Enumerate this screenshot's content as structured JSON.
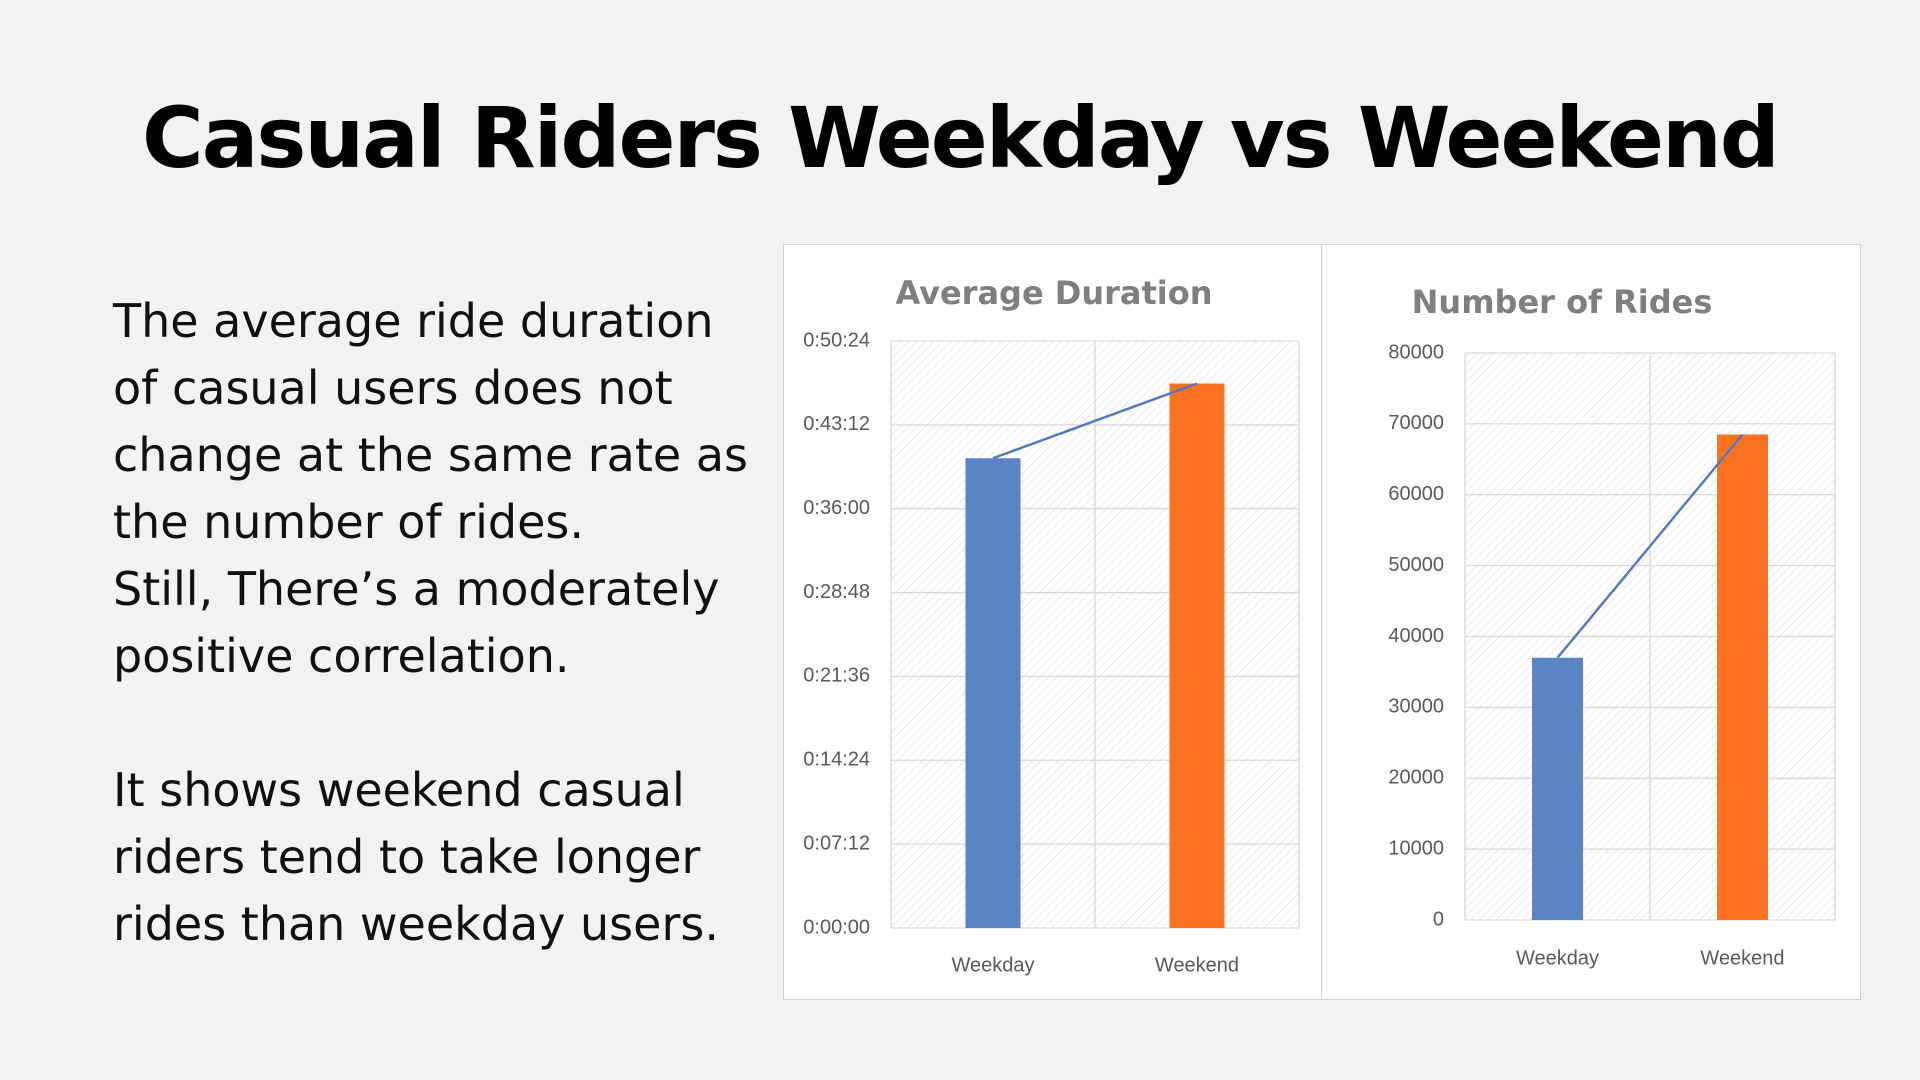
{
  "slide": {
    "title": "Casual Riders Weekday vs Weekend",
    "paragraph1": [
      "The average ride duration",
      "of casual users does not",
      "change at the same rate as",
      "the number of rides.",
      "Still, There’s a moderately",
      "positive correlation."
    ],
    "paragraph2": [
      "It shows weekend casual",
      "riders tend to take longer",
      "rides than weekday users."
    ]
  },
  "colors": {
    "weekday": "#5b84c4",
    "weekend": "#fb7321",
    "trendline": "#4f79c0"
  },
  "chart_data": [
    {
      "type": "bar",
      "title": "Average Duration",
      "categories": [
        "Weekday",
        "Weekend"
      ],
      "values": [
        "0:40:20",
        "0:46:45"
      ],
      "values_seconds": [
        2420,
        2805
      ],
      "ylim": [
        0,
        3024
      ],
      "ytick_labels": [
        "0:00:00",
        "0:07:12",
        "0:14:24",
        "0:21:36",
        "0:28:48",
        "0:36:00",
        "0:43:12",
        "0:50:24"
      ],
      "ytick_values": [
        0,
        432,
        864,
        1296,
        1728,
        2160,
        2592,
        3024
      ],
      "bar_colors": [
        "#5b84c4",
        "#fb7321"
      ],
      "trendline": true,
      "grid": true
    },
    {
      "type": "bar",
      "title": "Number of Rides",
      "categories": [
        "Weekday",
        "Weekend"
      ],
      "values": [
        37000,
        68500
      ],
      "ylim": [
        0,
        80000
      ],
      "ytick_labels": [
        "0",
        "10000",
        "20000",
        "30000",
        "40000",
        "50000",
        "60000",
        "70000",
        "80000"
      ],
      "ytick_values": [
        0,
        10000,
        20000,
        30000,
        40000,
        50000,
        60000,
        70000,
        80000
      ],
      "bar_colors": [
        "#5b84c4",
        "#fb7321"
      ],
      "trendline": true,
      "grid": true
    }
  ]
}
